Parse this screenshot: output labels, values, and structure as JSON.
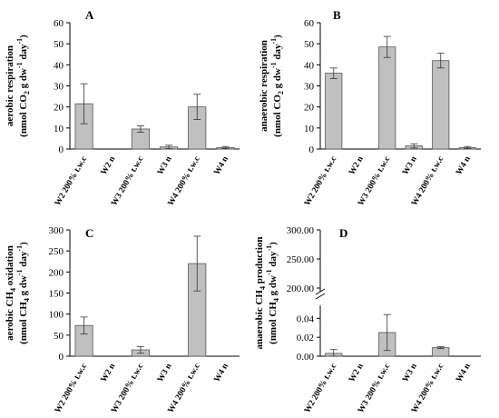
{
  "chart_data": [
    {
      "panel": "A",
      "type": "bar",
      "categories": [
        "W2 200% t.w.c",
        "W2 n",
        "W3 200% t.w.c",
        "W3 n",
        "W4 200% t.w.c",
        "W4 n"
      ],
      "values": [
        21.5,
        0,
        9.5,
        1.0,
        20.0,
        0.7
      ],
      "errors": [
        9.5,
        0,
        1.5,
        0.8,
        6.0,
        0.5
      ],
      "yticks": [
        "0",
        "10",
        "20",
        "30",
        "40",
        "50",
        "60"
      ],
      "ylim": [
        0,
        60
      ],
      "ylabel_line1": "aerobic respiration",
      "ylabel_line2": [
        "(nmol CO",
        "2",
        " g dw",
        "-1",
        " day",
        "-1",
        ")"
      ],
      "bar_color": "#c0c0c0"
    },
    {
      "panel": "B",
      "type": "bar",
      "categories": [
        "W2 200% t.w.c",
        "W2 n",
        "W3 200% t.w.c",
        "W3 n",
        "W4 200% t.w.c",
        "W4 n"
      ],
      "values": [
        36.0,
        0,
        48.5,
        1.5,
        42.0,
        0.7
      ],
      "errors": [
        2.5,
        0,
        5.0,
        1.0,
        3.5,
        0.5
      ],
      "yticks": [
        "0",
        "10",
        "20",
        "30",
        "40",
        "50",
        "60"
      ],
      "ylim": [
        0,
        60
      ],
      "ylabel_line1": "anaerobic respiration",
      "ylabel_line2": [
        "(nmol CO",
        "2",
        " g dw",
        "-1",
        " day",
        "-1",
        ")"
      ],
      "bar_color": "#c0c0c0"
    },
    {
      "panel": "C",
      "type": "bar",
      "categories": [
        "W2 200% t.w.c",
        "W2 n",
        "W3 200% t.w.c",
        "W3 n",
        "W4 200% t.w.c",
        "W4 n"
      ],
      "values": [
        73,
        0,
        15,
        0,
        220,
        0
      ],
      "errors": [
        20,
        0,
        8,
        0,
        65,
        0
      ],
      "yticks": [
        "0",
        "50",
        "100",
        "150",
        "200",
        "250",
        "300"
      ],
      "ylim": [
        0,
        300
      ],
      "ylabel_line1": [
        "aerobic CH",
        "4",
        " oxidation"
      ],
      "ylabel_line2": [
        "(nmol CH",
        "4",
        " g dw",
        "-1",
        " day",
        "-1",
        ")"
      ],
      "bar_color": "#c0c0c0"
    },
    {
      "panel": "D",
      "type": "bar",
      "broken_axis": true,
      "categories": [
        "W2 200% t.w.c",
        "W2 n",
        "W3 200% t.w.c",
        "W3 n",
        "W4 200% t.w.c",
        "W4 n"
      ],
      "values": [
        0.003,
        0,
        0.025,
        0,
        0.009,
        0
      ],
      "errors": [
        0.004,
        0,
        0.019,
        0,
        0.001,
        0
      ],
      "yticks_lower": [
        "0.00",
        "0.02",
        "0.04"
      ],
      "yticks_upper": [
        "200.00",
        "250.00",
        "300.00"
      ],
      "ylim_lower": [
        0,
        0.048
      ],
      "ylim_upper": [
        200,
        300
      ],
      "ylabel_line1": [
        "anaerobic CH",
        "4",
        " production"
      ],
      "ylabel_line2": [
        "(nmol CH",
        "4",
        " g dw",
        "-1",
        " day",
        "-1",
        ")"
      ],
      "bar_color": "#c0c0c0"
    }
  ]
}
